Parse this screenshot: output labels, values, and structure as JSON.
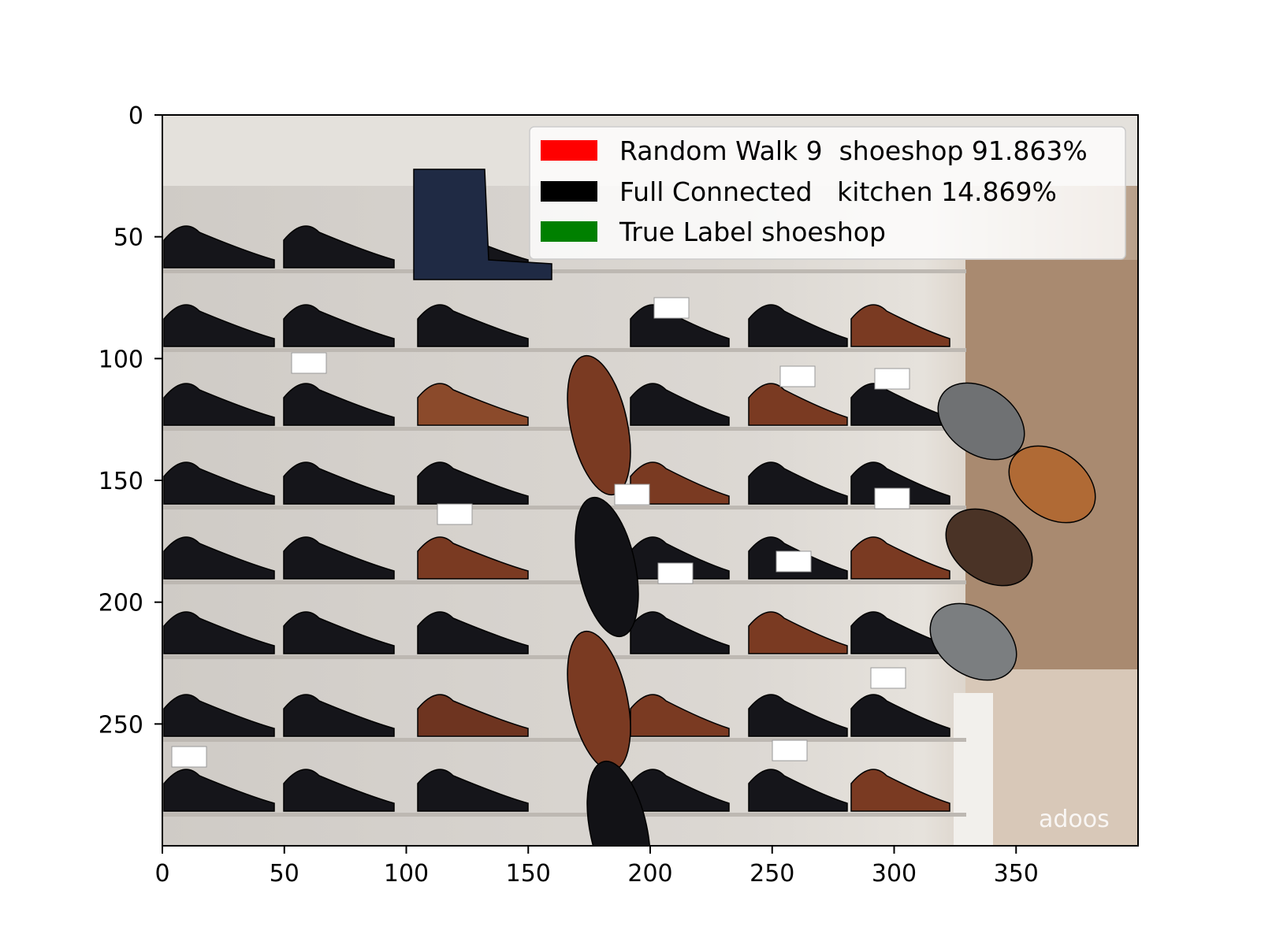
{
  "plot": {
    "x_ticks": [
      "0",
      "50",
      "100",
      "150",
      "200",
      "250",
      "300",
      "350"
    ],
    "x_tick_values": [
      0,
      50,
      100,
      150,
      200,
      250,
      300,
      350
    ],
    "y_ticks": [
      "0",
      "50",
      "100",
      "150",
      "200",
      "250"
    ],
    "y_tick_values": [
      0,
      50,
      100,
      150,
      200,
      250
    ],
    "x_range": [
      0,
      400
    ],
    "y_range": [
      0,
      300
    ],
    "y_inverted": true,
    "grid": false
  },
  "legend": {
    "placement": "upper-right",
    "entries": [
      {
        "color": "#ff0000",
        "label": "Random Walk 9  shoeshop 91.863%"
      },
      {
        "color": "#000000",
        "label": "Full Connected   kitchen 14.869%"
      },
      {
        "color": "#008000",
        "label": "True Label shoeshop"
      }
    ]
  },
  "image": {
    "subject": "shoe store wall display",
    "watermark": "adoos"
  }
}
